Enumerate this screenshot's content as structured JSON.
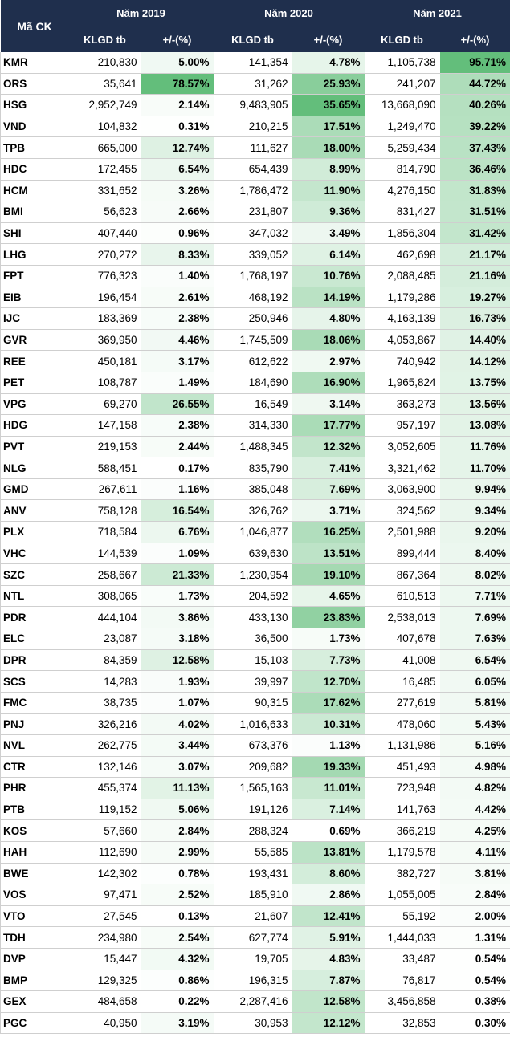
{
  "header": {
    "symbol": "Mã CK",
    "years": [
      "Năm 2019",
      "Năm 2020",
      "Năm 2021"
    ],
    "vol_label": "KLGD tb",
    "pct_label": "+/-(%)"
  },
  "colors": {
    "header_bg": "#1f2f4d",
    "header_text": "#ffffff",
    "scale_low": "#ffffff",
    "scale_high": "#63be7b"
  },
  "rows": [
    [
      "KMR",
      "210,830",
      "5.00%",
      "141,354",
      "4.78%",
      "1,105,738",
      "95.71%"
    ],
    [
      "ORS",
      "35,641",
      "78.57%",
      "31,262",
      "25.93%",
      "241,207",
      "44.72%"
    ],
    [
      "HSG",
      "2,952,749",
      "2.14%",
      "9,483,905",
      "35.65%",
      "13,668,090",
      "40.26%"
    ],
    [
      "VND",
      "104,832",
      "0.31%",
      "210,215",
      "17.51%",
      "1,249,470",
      "39.22%"
    ],
    [
      "TPB",
      "665,000",
      "12.74%",
      "111,627",
      "18.00%",
      "5,259,434",
      "37.43%"
    ],
    [
      "HDC",
      "172,455",
      "6.54%",
      "654,439",
      "8.99%",
      "814,790",
      "36.46%"
    ],
    [
      "HCM",
      "331,652",
      "3.26%",
      "1,786,472",
      "11.90%",
      "4,276,150",
      "31.83%"
    ],
    [
      "BMI",
      "56,623",
      "2.66%",
      "231,807",
      "9.36%",
      "831,427",
      "31.51%"
    ],
    [
      "SHI",
      "407,440",
      "0.96%",
      "347,032",
      "3.49%",
      "1,856,304",
      "31.42%"
    ],
    [
      "LHG",
      "270,272",
      "8.33%",
      "339,052",
      "6.14%",
      "462,698",
      "21.17%"
    ],
    [
      "FPT",
      "776,323",
      "1.40%",
      "1,768,197",
      "10.76%",
      "2,088,485",
      "21.16%"
    ],
    [
      "EIB",
      "196,454",
      "2.61%",
      "468,192",
      "14.19%",
      "1,179,286",
      "19.27%"
    ],
    [
      "IJC",
      "183,369",
      "2.38%",
      "250,946",
      "4.80%",
      "4,163,139",
      "16.73%"
    ],
    [
      "GVR",
      "369,950",
      "4.46%",
      "1,745,509",
      "18.06%",
      "4,053,867",
      "14.40%"
    ],
    [
      "REE",
      "450,181",
      "3.17%",
      "612,622",
      "2.97%",
      "740,942",
      "14.12%"
    ],
    [
      "PET",
      "108,787",
      "1.49%",
      "184,690",
      "16.90%",
      "1,965,824",
      "13.75%"
    ],
    [
      "VPG",
      "69,270",
      "26.55%",
      "16,549",
      "3.14%",
      "363,273",
      "13.56%"
    ],
    [
      "HDG",
      "147,158",
      "2.38%",
      "314,330",
      "17.77%",
      "957,197",
      "13.08%"
    ],
    [
      "PVT",
      "219,153",
      "2.44%",
      "1,488,345",
      "12.32%",
      "3,052,605",
      "11.76%"
    ],
    [
      "NLG",
      "588,451",
      "0.17%",
      "835,790",
      "7.41%",
      "3,321,462",
      "11.70%"
    ],
    [
      "GMD",
      "267,611",
      "1.16%",
      "385,048",
      "7.69%",
      "3,063,900",
      "9.94%"
    ],
    [
      "ANV",
      "758,128",
      "16.54%",
      "326,762",
      "3.71%",
      "324,562",
      "9.34%"
    ],
    [
      "PLX",
      "718,584",
      "6.76%",
      "1,046,877",
      "16.25%",
      "2,501,988",
      "9.20%"
    ],
    [
      "VHC",
      "144,539",
      "1.09%",
      "639,630",
      "13.51%",
      "899,444",
      "8.40%"
    ],
    [
      "SZC",
      "258,667",
      "21.33%",
      "1,230,954",
      "19.10%",
      "867,364",
      "8.02%"
    ],
    [
      "NTL",
      "308,065",
      "1.73%",
      "204,592",
      "4.65%",
      "610,513",
      "7.71%"
    ],
    [
      "PDR",
      "444,104",
      "3.86%",
      "433,130",
      "23.83%",
      "2,538,013",
      "7.69%"
    ],
    [
      "ELC",
      "23,087",
      "3.18%",
      "36,500",
      "1.73%",
      "407,678",
      "7.63%"
    ],
    [
      "DPR",
      "84,359",
      "12.58%",
      "15,103",
      "7.73%",
      "41,008",
      "6.54%"
    ],
    [
      "SCS",
      "14,283",
      "1.93%",
      "39,997",
      "12.70%",
      "16,485",
      "6.05%"
    ],
    [
      "FMC",
      "38,735",
      "1.07%",
      "90,315",
      "17.62%",
      "277,619",
      "5.81%"
    ],
    [
      "PNJ",
      "326,216",
      "4.02%",
      "1,016,633",
      "10.31%",
      "478,060",
      "5.43%"
    ],
    [
      "NVL",
      "262,775",
      "3.44%",
      "673,376",
      "1.13%",
      "1,131,986",
      "5.16%"
    ],
    [
      "CTR",
      "132,146",
      "3.07%",
      "209,682",
      "19.33%",
      "451,493",
      "4.98%"
    ],
    [
      "PHR",
      "455,374",
      "11.13%",
      "1,565,163",
      "11.01%",
      "723,948",
      "4.82%"
    ],
    [
      "PTB",
      "119,152",
      "5.06%",
      "191,126",
      "7.14%",
      "141,763",
      "4.42%"
    ],
    [
      "KOS",
      "57,660",
      "2.84%",
      "288,324",
      "0.69%",
      "366,219",
      "4.25%"
    ],
    [
      "HAH",
      "112,690",
      "2.99%",
      "55,585",
      "13.81%",
      "1,179,578",
      "4.11%"
    ],
    [
      "BWE",
      "142,302",
      "0.78%",
      "193,431",
      "8.60%",
      "382,727",
      "3.81%"
    ],
    [
      "VOS",
      "97,471",
      "2.52%",
      "185,910",
      "2.86%",
      "1,055,005",
      "2.84%"
    ],
    [
      "VTO",
      "27,545",
      "0.13%",
      "21,607",
      "12.41%",
      "55,192",
      "2.00%"
    ],
    [
      "TDH",
      "234,980",
      "2.54%",
      "627,774",
      "5.91%",
      "1,444,033",
      "1.31%"
    ],
    [
      "DVP",
      "15,447",
      "4.32%",
      "19,705",
      "4.83%",
      "33,487",
      "0.54%"
    ],
    [
      "BMP",
      "129,325",
      "0.86%",
      "196,315",
      "7.87%",
      "76,817",
      "0.54%"
    ],
    [
      "GEX",
      "484,658",
      "0.22%",
      "2,287,416",
      "12.58%",
      "3,456,858",
      "0.38%"
    ],
    [
      "PGC",
      "40,950",
      "3.19%",
      "30,953",
      "12.12%",
      "32,853",
      "0.30%"
    ]
  ]
}
